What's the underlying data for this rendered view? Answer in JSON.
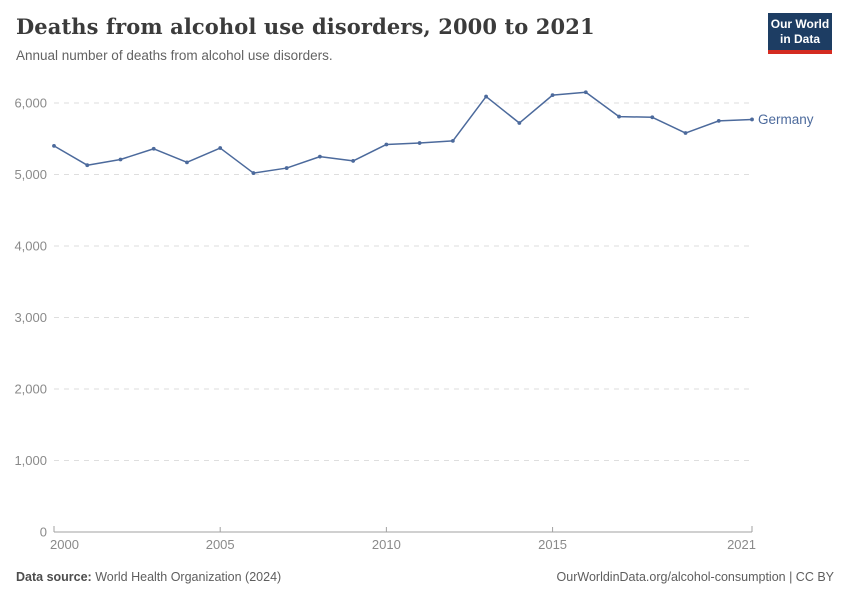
{
  "header": {
    "title": "Deaths from alcohol use disorders, 2000 to 2021",
    "subtitle": "Annual number of deaths from alcohol use disorders.",
    "logo": {
      "line1": "Our World",
      "line2": "in Data"
    }
  },
  "footer": {
    "datasource_label": "Data source:",
    "datasource_value": " World Health Organization (2024)",
    "license": "OurWorldinData.org/alcohol-consumption | CC BY"
  },
  "colors": {
    "line": "#4c6a9c",
    "entity_label": "#4c6a9c",
    "grid": "#dedede",
    "axis": "#a1a1a1",
    "tick_label": "#8a8a8a",
    "logo_bg": "#1d3d63",
    "logo_bar": "#d42b21"
  },
  "chart_data": {
    "type": "line",
    "title": "Deaths from alcohol use disorders, 2000 to 2021",
    "subtitle": "Annual number of deaths from alcohol use disorders.",
    "xlabel": "",
    "ylabel": "",
    "x": [
      2000,
      2001,
      2002,
      2003,
      2004,
      2005,
      2006,
      2007,
      2008,
      2009,
      2010,
      2011,
      2012,
      2013,
      2014,
      2015,
      2016,
      2017,
      2018,
      2019,
      2020,
      2021
    ],
    "series": [
      {
        "name": "Germany",
        "values": [
          5400,
          5130,
          5210,
          5360,
          5170,
          5370,
          5020,
          5090,
          5250,
          5190,
          5420,
          5440,
          5470,
          6090,
          5720,
          6110,
          6150,
          5810,
          5800,
          5580,
          5750,
          5770
        ]
      }
    ],
    "x_ticks": [
      2000,
      2005,
      2010,
      2015,
      2021
    ],
    "y_ticks": [
      0,
      1000,
      2000,
      3000,
      4000,
      5000,
      6000
    ],
    "xlim": [
      2000,
      2021
    ],
    "ylim": [
      0,
      6000
    ],
    "grid": "horizontal-dashed",
    "legend": "line-end-label"
  }
}
